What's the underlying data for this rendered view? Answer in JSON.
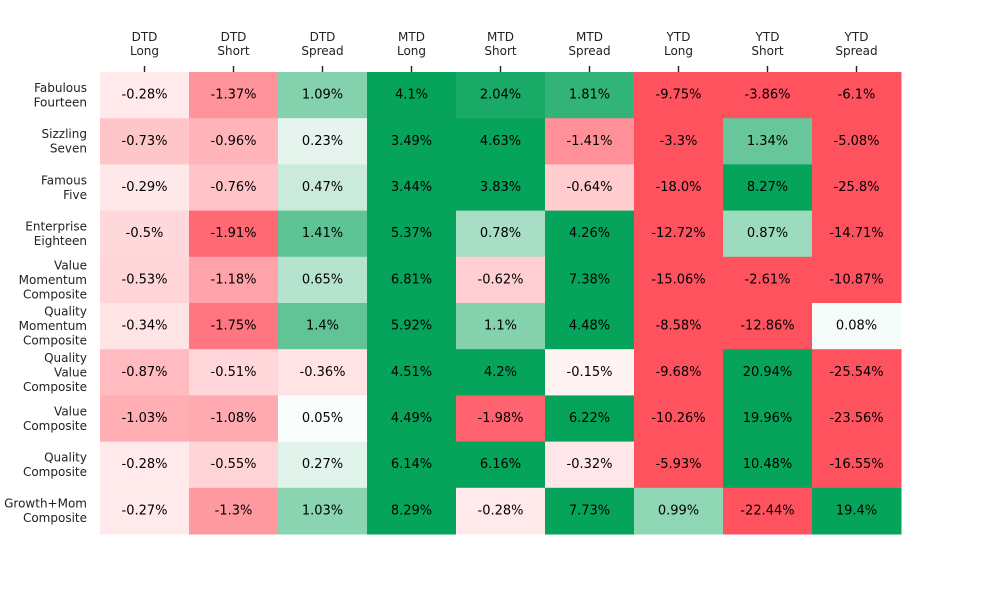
{
  "chart_data": {
    "type": "heatmap",
    "title": "",
    "xlabel": "",
    "ylabel": "",
    "x_axis_position": "top",
    "grid": false,
    "legend": "none",
    "value_suffix": "%",
    "columns": [
      [
        "DTD",
        "Long"
      ],
      [
        "DTD",
        "Short"
      ],
      [
        "DTD",
        "Spread"
      ],
      [
        "MTD",
        "Long"
      ],
      [
        "MTD",
        "Short"
      ],
      [
        "MTD",
        "Spread"
      ],
      [
        "YTD",
        "Long"
      ],
      [
        "YTD",
        "Short"
      ],
      [
        "YTD",
        "Spread"
      ]
    ],
    "rows": [
      [
        "Fabulous",
        "Fourteen"
      ],
      [
        "Sizzling",
        "Seven"
      ],
      [
        "Famous",
        "Five"
      ],
      [
        "Enterprise",
        "Eighteen"
      ],
      [
        "Value",
        "Momentum",
        "Composite"
      ],
      [
        "Quality",
        "Momentum",
        "Composite"
      ],
      [
        "Quality",
        "Value",
        "Composite"
      ],
      [
        "Value",
        "Composite"
      ],
      [
        "Quality",
        "Composite"
      ],
      [
        "Growth+Mom",
        "Composite"
      ]
    ],
    "values": [
      [
        -0.28,
        -1.37,
        1.09,
        4.1,
        2.04,
        1.81,
        -9.75,
        -3.86,
        -6.1
      ],
      [
        -0.73,
        -0.96,
        0.23,
        3.49,
        4.63,
        -1.41,
        -3.3,
        1.34,
        -5.08
      ],
      [
        -0.29,
        -0.76,
        0.47,
        3.44,
        3.83,
        -0.64,
        -18.0,
        8.27,
        -25.8
      ],
      [
        -0.5,
        -1.91,
        1.41,
        5.37,
        0.78,
        4.26,
        -12.72,
        0.87,
        -14.71
      ],
      [
        -0.53,
        -1.18,
        0.65,
        6.81,
        -0.62,
        7.38,
        -15.06,
        -2.61,
        -10.87
      ],
      [
        -0.34,
        -1.75,
        1.4,
        5.92,
        1.1,
        4.48,
        -8.58,
        -12.86,
        0.08
      ],
      [
        -0.87,
        -0.51,
        -0.36,
        4.51,
        4.2,
        -0.15,
        -9.68,
        20.94,
        -25.54
      ],
      [
        -1.03,
        -1.08,
        0.05,
        4.49,
        -1.98,
        6.22,
        -10.26,
        19.96,
        -23.56
      ],
      [
        -0.28,
        -0.55,
        0.27,
        6.14,
        6.16,
        -0.32,
        -5.93,
        10.48,
        -16.55
      ],
      [
        -0.27,
        -1.3,
        1.03,
        8.29,
        -0.28,
        7.73,
        0.99,
        -22.44,
        19.4
      ]
    ],
    "labels": [
      [
        "-0.28%",
        "-1.37%",
        "1.09%",
        "4.1%",
        "2.04%",
        "1.81%",
        "-9.75%",
        "-3.86%",
        "-6.1%"
      ],
      [
        "-0.73%",
        "-0.96%",
        "0.23%",
        "3.49%",
        "4.63%",
        "-1.41%",
        "-3.3%",
        "1.34%",
        "-5.08%"
      ],
      [
        "-0.29%",
        "-0.76%",
        "0.47%",
        "3.44%",
        "3.83%",
        "-0.64%",
        "-18.0%",
        "8.27%",
        "-25.8%"
      ],
      [
        "-0.5%",
        "-1.91%",
        "1.41%",
        "5.37%",
        "0.78%",
        "4.26%",
        "-12.72%",
        "0.87%",
        "-14.71%"
      ],
      [
        "-0.53%",
        "-1.18%",
        "0.65%",
        "6.81%",
        "-0.62%",
        "7.38%",
        "-15.06%",
        "-2.61%",
        "-10.87%"
      ],
      [
        "-0.34%",
        "-1.75%",
        "1.4%",
        "5.92%",
        "1.1%",
        "4.48%",
        "-8.58%",
        "-12.86%",
        "0.08%"
      ],
      [
        "-0.87%",
        "-0.51%",
        "-0.36%",
        "4.51%",
        "4.2%",
        "-0.15%",
        "-9.68%",
        "20.94%",
        "-25.54%"
      ],
      [
        "-1.03%",
        "-1.08%",
        "0.05%",
        "4.49%",
        "-1.98%",
        "6.22%",
        "-10.26%",
        "19.96%",
        "-23.56%"
      ],
      [
        "-0.28%",
        "-0.55%",
        "0.27%",
        "6.14%",
        "6.16%",
        "-0.32%",
        "-5.93%",
        "10.48%",
        "-16.55%"
      ],
      [
        "-0.27%",
        "-1.3%",
        "1.03%",
        "8.29%",
        "-0.28%",
        "7.73%",
        "0.99%",
        "-22.44%",
        "19.4%"
      ]
    ],
    "color_scale": {
      "negative_max": "#ff525f",
      "neutral": "#ffffff",
      "positive_max": "#06a35a",
      "saturation_magnitude": 2.2
    }
  }
}
